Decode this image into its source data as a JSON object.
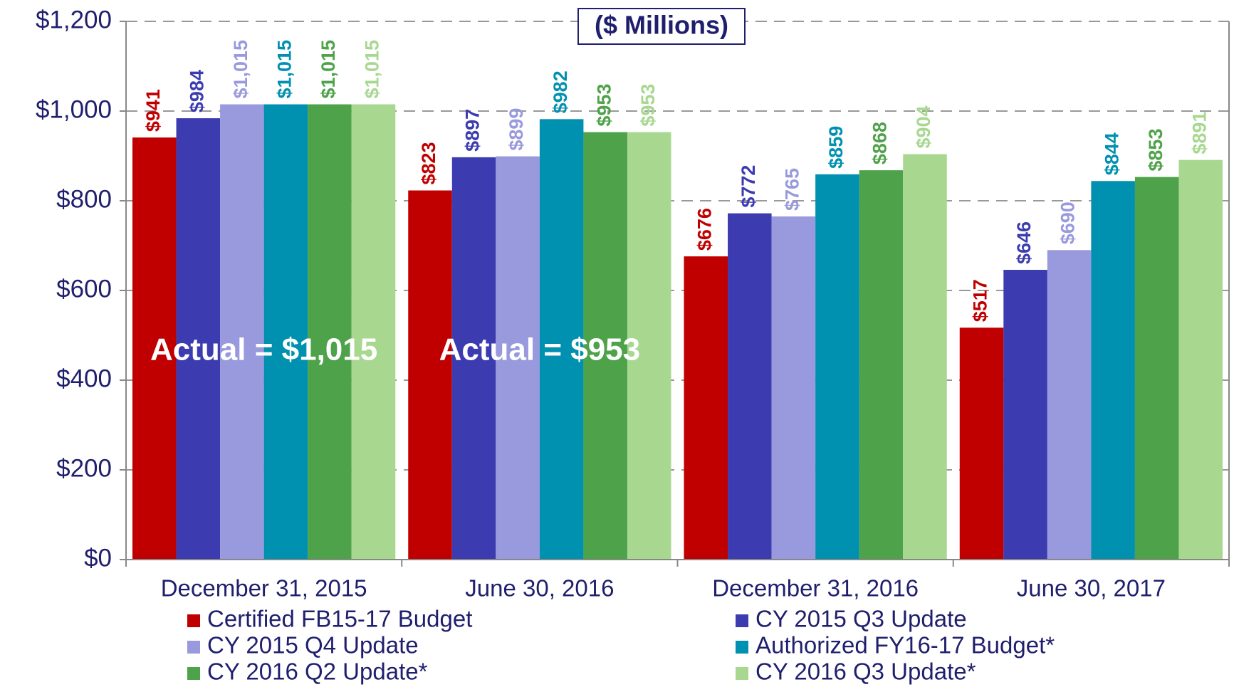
{
  "chart_data": {
    "type": "bar",
    "subtitle": "($ Millions)",
    "categories": [
      "December 31, 2015",
      "June 30, 2016",
      "December 31, 2016",
      "June 30, 2017"
    ],
    "series": [
      {
        "name": "Certified FB15-17 Budget",
        "color": "#c00000",
        "values": [
          941,
          823,
          676,
          517
        ],
        "value_labels": [
          "$941",
          "$823",
          "$676",
          "$517"
        ]
      },
      {
        "name": "CY 2015 Q3 Update",
        "color": "#3c3cb0",
        "values": [
          984,
          897,
          772,
          646
        ],
        "value_labels": [
          "$984",
          "$897",
          "$772",
          "$646"
        ]
      },
      {
        "name": "CY 2015 Q4 Update",
        "color": "#9999dd",
        "values": [
          1015,
          899,
          765,
          690
        ],
        "value_labels": [
          "$1,015",
          "$899",
          "$765",
          "$690"
        ]
      },
      {
        "name": "Authorized FY16-17 Budget*",
        "color": "#0090b0",
        "values": [
          1015,
          982,
          859,
          844
        ],
        "value_labels": [
          "$1,015",
          "$982",
          "$859",
          "$844"
        ]
      },
      {
        "name": "CY 2016 Q2 Update*",
        "color": "#4ea24a",
        "values": [
          1015,
          953,
          868,
          853
        ],
        "value_labels": [
          "$1,015",
          "$953",
          "$868",
          "$853"
        ]
      },
      {
        "name": "CY 2016 Q3 Update*",
        "color": "#a8d890",
        "values": [
          1015,
          953,
          904,
          891
        ],
        "value_labels": [
          "$1,015",
          "$953",
          "$904",
          "$891"
        ]
      }
    ],
    "annotations": [
      "Actual = $1,015",
      "Actual = $953"
    ],
    "ylim": [
      0,
      1200
    ],
    "yticks": [
      {
        "value": 0,
        "label": "$0"
      },
      {
        "value": 200,
        "label": "$200"
      },
      {
        "value": 400,
        "label": "$400"
      },
      {
        "value": 600,
        "label": "$600"
      },
      {
        "value": 800,
        "label": "$800"
      },
      {
        "value": 1000,
        "label": "$1,000"
      },
      {
        "value": 1200,
        "label": "$1,200"
      }
    ],
    "grid": true,
    "legend": "bottom"
  }
}
